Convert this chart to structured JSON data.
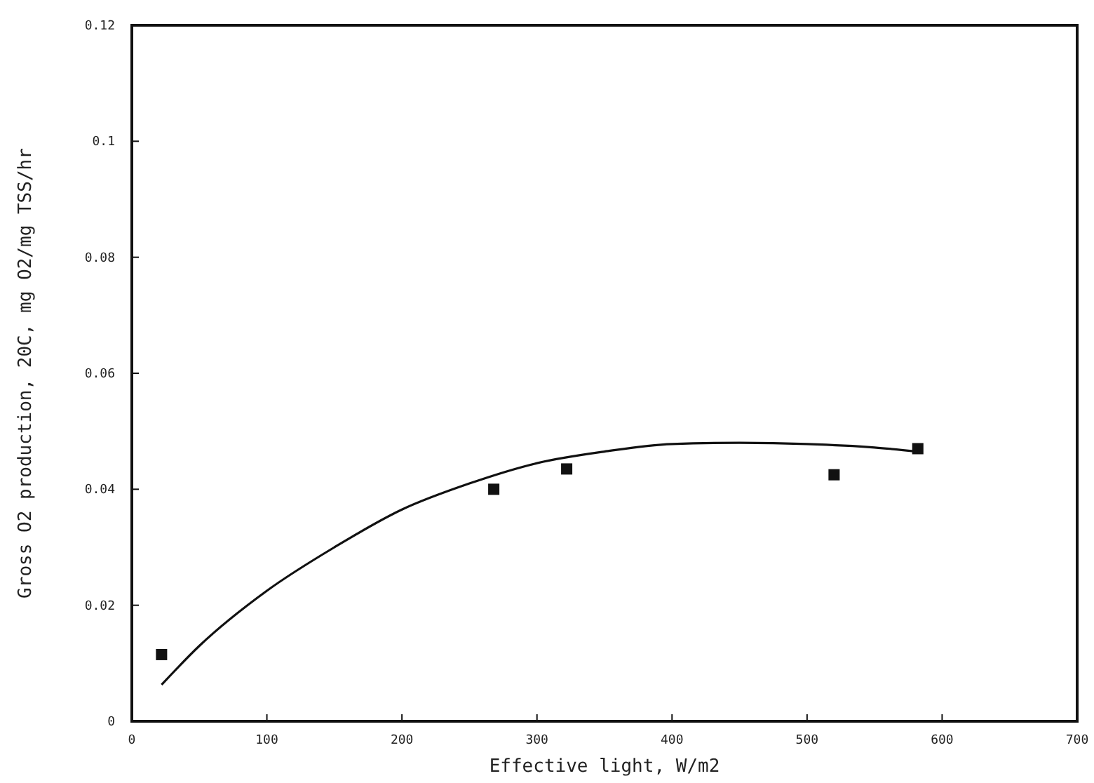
{
  "chart_data": {
    "type": "scatter",
    "xlabel": "Effective light, W/m2",
    "ylabel": "Gross O2 production, 20C, mg O2/mg TSS/hr",
    "xlim": [
      0,
      700
    ],
    "xticks": [
      0,
      100,
      200,
      300,
      400,
      500,
      600,
      700
    ],
    "ylim": [
      0,
      0.12
    ],
    "yticks": [
      0,
      0.02,
      0.04,
      0.06,
      0.08,
      0.1,
      0.12
    ],
    "grid": false,
    "series": [
      {
        "type": "scatter",
        "marker": "square",
        "color": "#111111",
        "x": [
          22,
          268,
          322,
          520,
          582
        ],
        "values": [
          0.0115,
          0.04,
          0.0435,
          0.0425,
          0.047
        ]
      },
      {
        "type": "line",
        "marker": "none",
        "line_style": "solid",
        "color": "#111111",
        "x": [
          22,
          50,
          100,
          150,
          200,
          250,
          300,
          350,
          400,
          450,
          500,
          550,
          582
        ],
        "values": [
          0.0063,
          0.013,
          0.0225,
          0.03,
          0.0365,
          0.041,
          0.0445,
          0.0465,
          0.0478,
          0.048,
          0.0478,
          0.0472,
          0.0465
        ]
      }
    ]
  }
}
